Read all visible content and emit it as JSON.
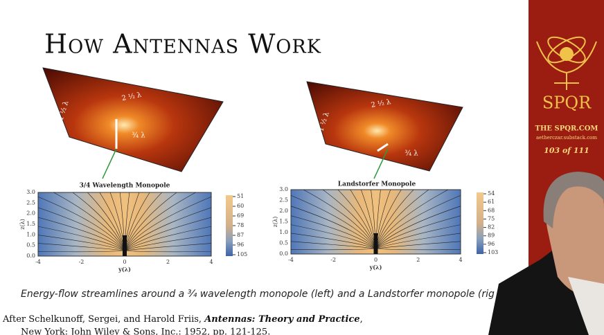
{
  "slide": {
    "title": "How Antennas Work",
    "figures": [
      {
        "width_label": "2 ½ λ",
        "height_label": "1 ½ λ",
        "antenna_label": "¾ λ",
        "plot_title": "3/4 Wavelength Monopole",
        "y_axis_label": "z(λ)",
        "x_axis_label": "y(λ)",
        "y_ticks": [
          "0.0",
          "0.5",
          "1.0",
          "1.5",
          "2.0",
          "2.5",
          "3.0"
        ],
        "x_ticks": [
          "-4",
          "-2",
          "0",
          "2",
          "4"
        ],
        "colorbar_ticks": [
          "51",
          "60",
          "69",
          "78",
          "87",
          "96",
          "105"
        ]
      },
      {
        "width_label": "2 ½ λ",
        "height_label": "1 ½ λ",
        "antenna_label": "¾ λ",
        "plot_title": "Landstorfer Monopole",
        "y_axis_label": "z(λ)",
        "x_axis_label": "y(λ)",
        "y_ticks": [
          "0.0",
          "0.5",
          "1.0",
          "1.5",
          "2.0",
          "2.5",
          "3.0"
        ],
        "x_ticks": [
          "-4",
          "-2",
          "0",
          "2",
          "4"
        ],
        "colorbar_ticks": [
          "54",
          "61",
          "68",
          "75",
          "82",
          "89",
          "96",
          "103"
        ]
      }
    ],
    "caption": "Energy-flow streamlines around a ¾ wavelength monopole (left) and a Landstorfer monopole (rig",
    "citation": {
      "prefix": "After Schelkunoff, Sergei, and Harold Friis, ",
      "book": "Antennas: Theory and Practice",
      "suffix": ",",
      "line2": "New York: John Wiley & Sons, Inc.: 1952, pp. 121-125."
    }
  },
  "sidebar": {
    "logo": "SPQR",
    "site": "THE SPQR.COM",
    "substack": "aetherczar.substack.com",
    "page": "103 of 111"
  }
}
